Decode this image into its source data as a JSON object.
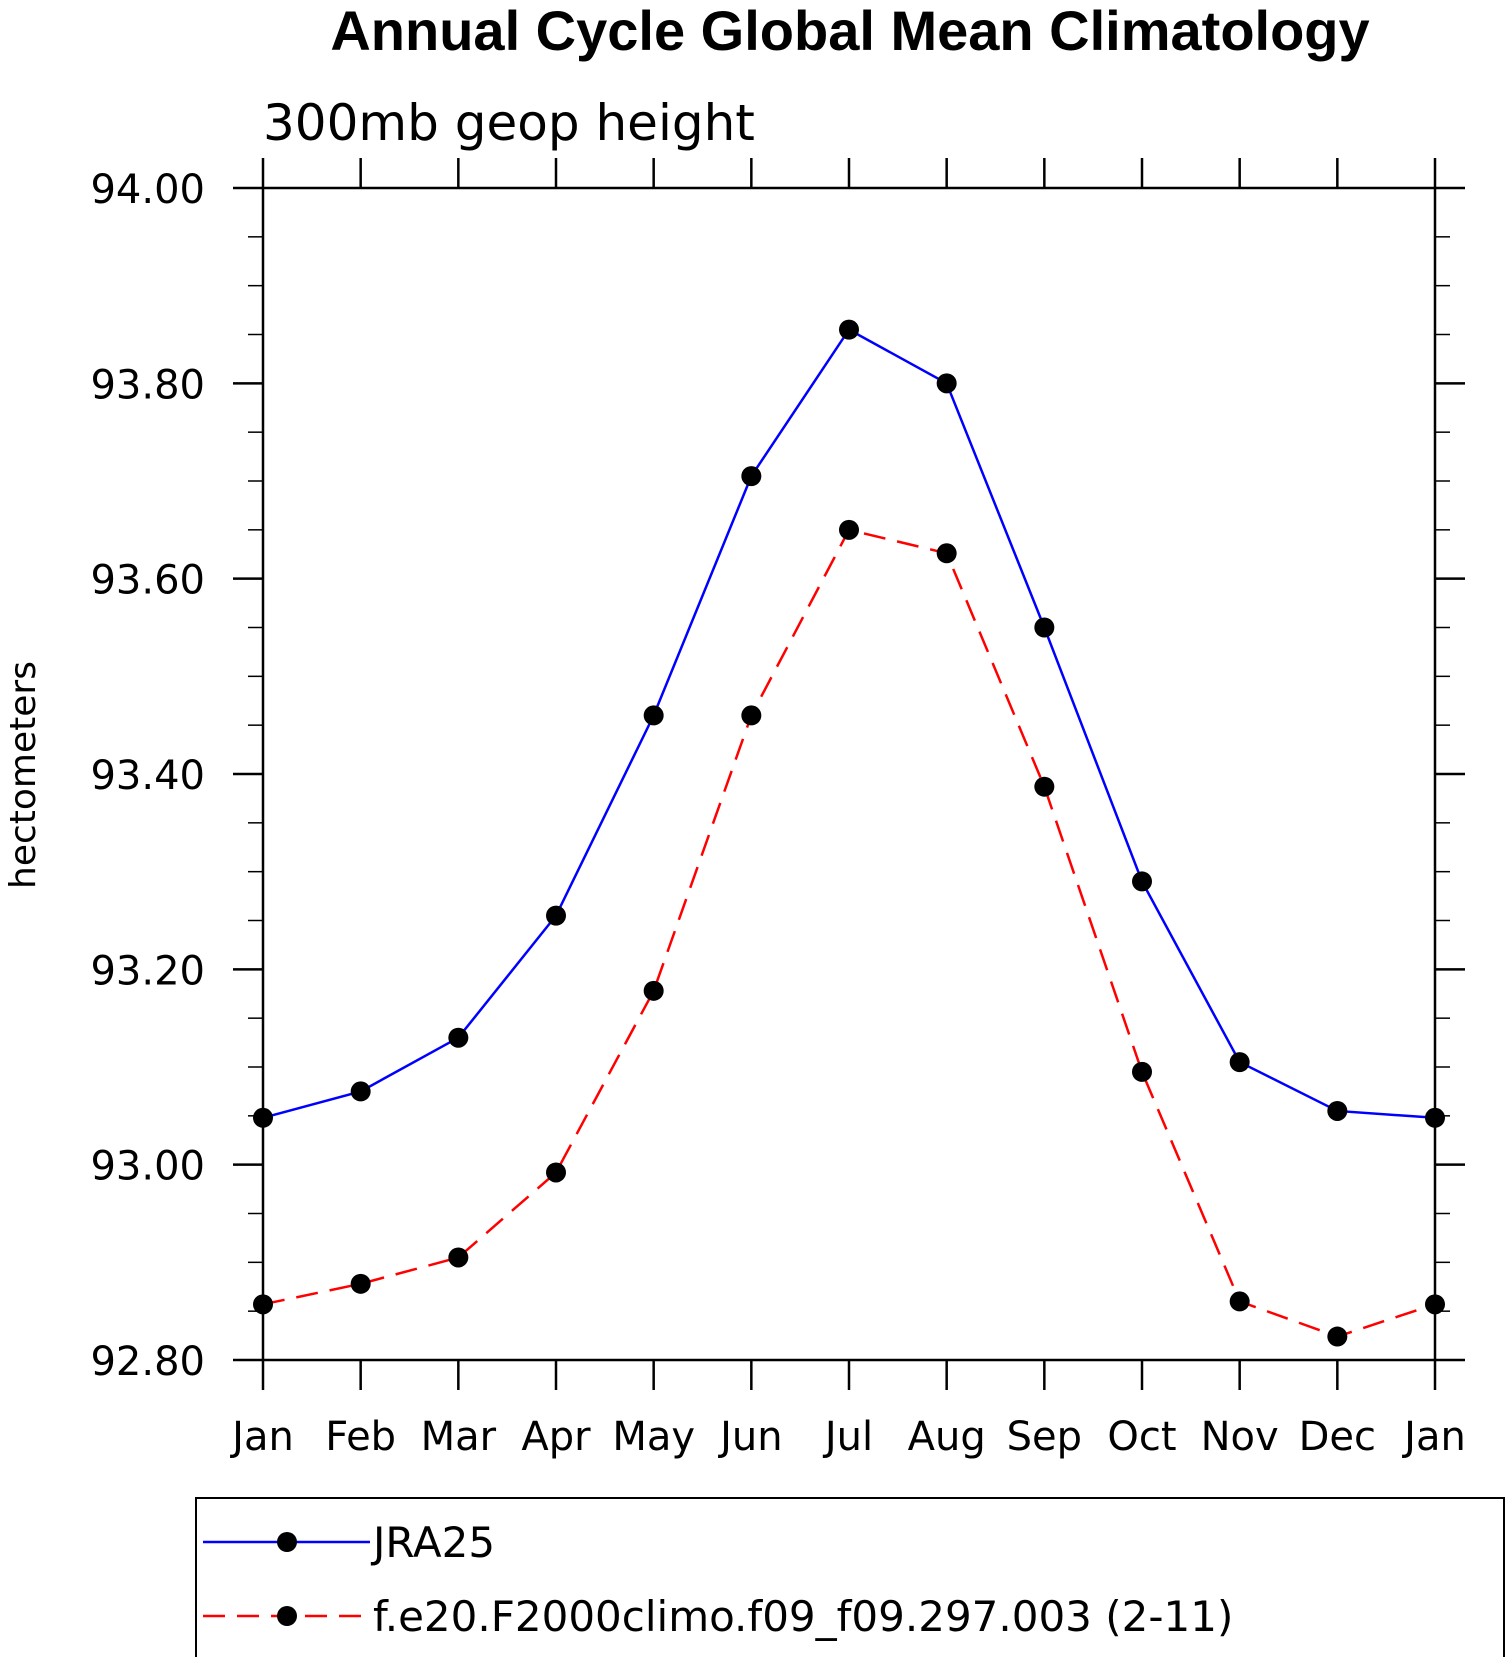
{
  "chart_data": {
    "type": "line",
    "title": "Annual Cycle Global Mean Climatology",
    "subtitle": "300mb geop height",
    "ylabel": "hectometers",
    "xlabel": "",
    "categories": [
      "Jan",
      "Feb",
      "Mar",
      "Apr",
      "May",
      "Jun",
      "Jul",
      "Aug",
      "Sep",
      "Oct",
      "Nov",
      "Dec",
      "Jan"
    ],
    "ylim": [
      92.8,
      94.0
    ],
    "yticks": [
      "92.80",
      "93.00",
      "93.20",
      "93.40",
      "93.60",
      "93.80",
      "94.00"
    ],
    "legend_placement": "bottom",
    "grid": false,
    "series": [
      {
        "name": "JRA25",
        "color": "#0000ff",
        "line_style": "solid",
        "marker": "filled-circle",
        "values": [
          93.048,
          93.075,
          93.13,
          93.255,
          93.46,
          93.705,
          93.855,
          93.8,
          93.55,
          93.29,
          93.105,
          93.055,
          93.048
        ]
      },
      {
        "name": "f.e20.F2000climo.f09_f09.297.003 (2-11)",
        "color": "#ff0000",
        "line_style": "dashed",
        "marker": "filled-circle",
        "values": [
          92.857,
          92.878,
          92.905,
          92.992,
          93.178,
          93.46,
          93.65,
          93.626,
          93.387,
          93.095,
          92.86,
          92.824,
          92.857
        ]
      }
    ]
  }
}
